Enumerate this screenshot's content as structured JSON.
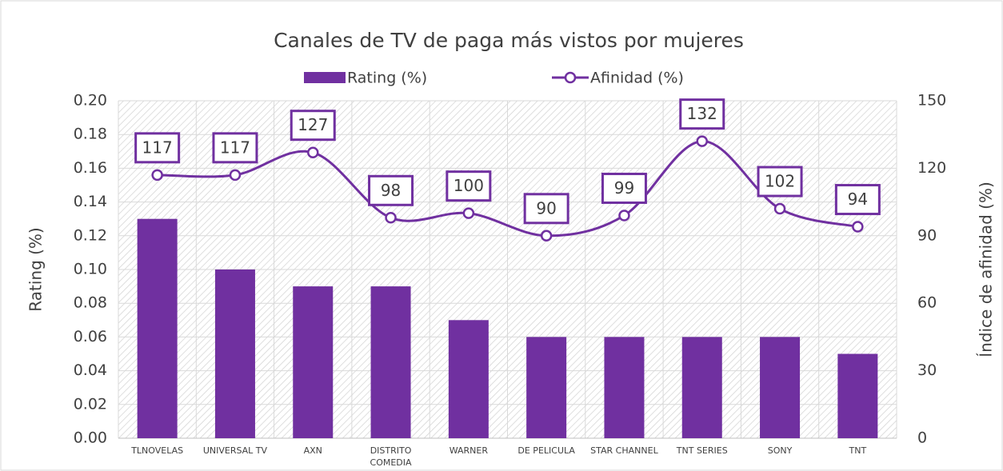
{
  "chart_data": {
    "type": "bar",
    "title": "Canales de TV de paga más vistos por mujeres",
    "y_label": "Rating (%)",
    "y2_label": "Índice de afinidad (%)",
    "categories": [
      "TLNOVELAS",
      "UNIVERSAL TV",
      "AXN",
      "DISTRITO COMEDIA",
      "WARNER",
      "DE PELICULA",
      "STAR CHANNEL",
      "TNT SERIES",
      "SONY",
      "TNT"
    ],
    "series": [
      {
        "name": "Rating (%)",
        "type": "bar",
        "color": "#7030a0",
        "values": [
          0.13,
          0.1,
          0.09,
          0.09,
          0.07,
          0.06,
          0.06,
          0.06,
          0.06,
          0.05
        ]
      },
      {
        "name": "Afinidad (%)",
        "type": "line",
        "axis": "y2",
        "color": "#7030a0",
        "values": [
          117,
          117,
          127,
          98,
          100,
          90,
          99,
          132,
          102,
          94
        ]
      }
    ],
    "ylim": [
      0,
      0.2
    ],
    "yticks": [
      {
        "value": 0,
        "label": "0.00"
      },
      {
        "value": 0.02,
        "label": "0.02"
      },
      {
        "value": 0.04,
        "label": "0.04"
      },
      {
        "value": 0.06,
        "label": "0.06"
      },
      {
        "value": 0.08,
        "label": "0.08"
      },
      {
        "value": 0.1,
        "label": "0.10"
      },
      {
        "value": 0.12,
        "label": "0.12"
      },
      {
        "value": 0.14,
        "label": "0.14"
      },
      {
        "value": 0.16,
        "label": "0.16"
      },
      {
        "value": 0.18,
        "label": "0.18"
      },
      {
        "value": 0.2,
        "label": "0.20"
      }
    ],
    "y2lim": [
      0,
      150
    ],
    "y2ticks": [
      0,
      30,
      60,
      90,
      120,
      150
    ],
    "grid": true,
    "legend": "top"
  }
}
